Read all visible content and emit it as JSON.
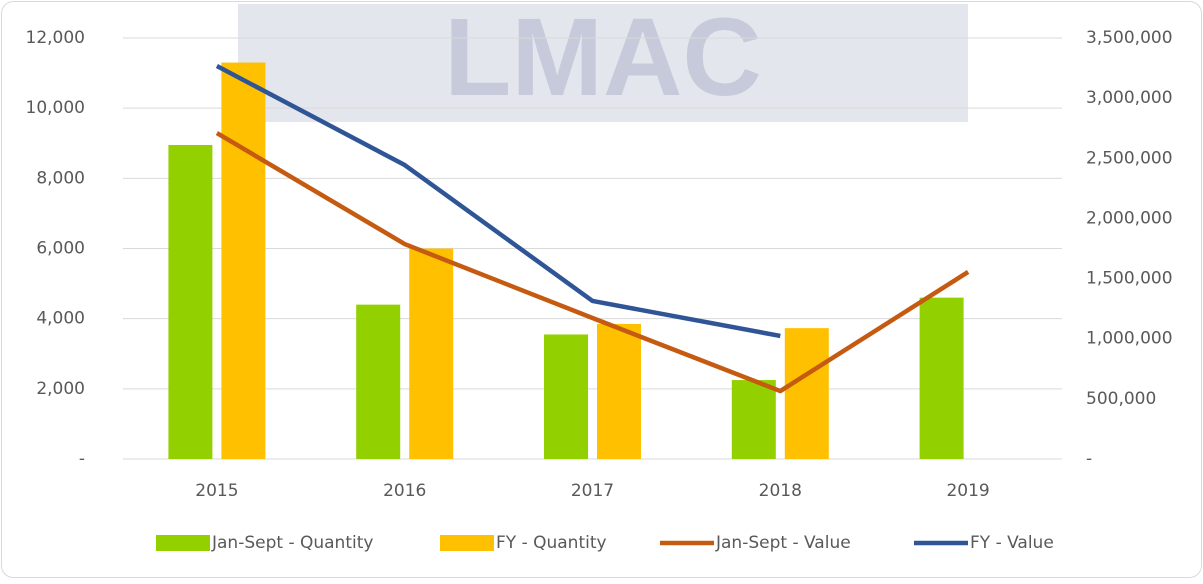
{
  "chart_data": {
    "type": "bar-line",
    "watermark": "LMAC",
    "categories": [
      "2015",
      "2016",
      "2017",
      "2018",
      "2019"
    ],
    "series": [
      {
        "name": "Jan-Sept - Quantity",
        "type": "bar",
        "color": "#92d000",
        "values": [
          8950,
          4400,
          3550,
          2250,
          4600
        ]
      },
      {
        "name": "FY - Quantity",
        "type": "bar",
        "color": "#ffc000",
        "values": [
          11300,
          6000,
          3850,
          3730,
          null
        ]
      },
      {
        "name": "Jan-Sept - Value",
        "type": "line",
        "axis": "y2",
        "color": "#c55a11",
        "values": [
          2710000,
          1787000,
          1172000,
          565000,
          1555000
        ]
      },
      {
        "name": "FY - Value",
        "type": "line",
        "axis": "y2",
        "color": "#2f5597",
        "values": [
          3267000,
          2444000,
          1314000,
          1023000,
          null
        ]
      }
    ],
    "ylim": [
      0,
      12000
    ],
    "yticks": [
      {
        "value": 0,
        "label": "-"
      },
      {
        "value": 2000,
        "label": "2,000"
      },
      {
        "value": 4000,
        "label": "4,000"
      },
      {
        "value": 6000,
        "label": "6,000"
      },
      {
        "value": 8000,
        "label": "8,000"
      },
      {
        "value": 10000,
        "label": "10,000"
      },
      {
        "value": 12000,
        "label": "12,000"
      }
    ],
    "y2lim": [
      0,
      3500000
    ],
    "y2ticks": [
      {
        "value": 0,
        "label": "-"
      },
      {
        "value": 500000,
        "label": "500,000"
      },
      {
        "value": 1000000,
        "label": "1,000,000"
      },
      {
        "value": 1500000,
        "label": "1,500,000"
      },
      {
        "value": 2000000,
        "label": "2,000,000"
      },
      {
        "value": 2500000,
        "label": "2,500,000"
      },
      {
        "value": 3000000,
        "label": "3,000,000"
      },
      {
        "value": 3500000,
        "label": "3,500,000"
      }
    ],
    "grid": true,
    "legend": "bottom"
  }
}
